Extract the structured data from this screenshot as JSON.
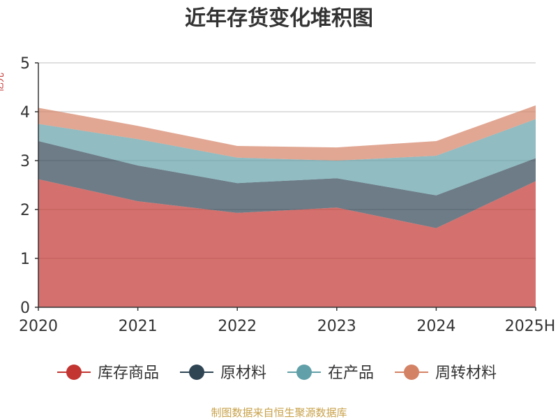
{
  "chart_data": {
    "type": "area",
    "stacked": true,
    "title": "近年存货变化堆积图",
    "ylabel": "亿元",
    "categories": [
      "2020",
      "2021",
      "2022",
      "2023",
      "2024",
      "2025H"
    ],
    "ylim": [
      0,
      5
    ],
    "yticks": [
      0,
      1,
      2,
      3,
      4,
      5
    ],
    "grid": true,
    "legend_position": "bottom",
    "series": [
      {
        "name": "库存商品",
        "color": "#c23531",
        "values": [
          2.62,
          2.17,
          1.93,
          2.04,
          1.62,
          2.58
        ]
      },
      {
        "name": "原材料",
        "color": "#2f4554",
        "values": [
          0.78,
          0.73,
          0.61,
          0.6,
          0.67,
          0.47
        ]
      },
      {
        "name": "在产品",
        "color": "#61a0a8",
        "values": [
          0.35,
          0.54,
          0.52,
          0.36,
          0.81,
          0.8
        ]
      },
      {
        "name": "周转材料",
        "color": "#d48265",
        "values": [
          0.33,
          0.27,
          0.24,
          0.27,
          0.3,
          0.28
        ]
      }
    ]
  },
  "source": "制图数据来自恒生聚源数据库"
}
